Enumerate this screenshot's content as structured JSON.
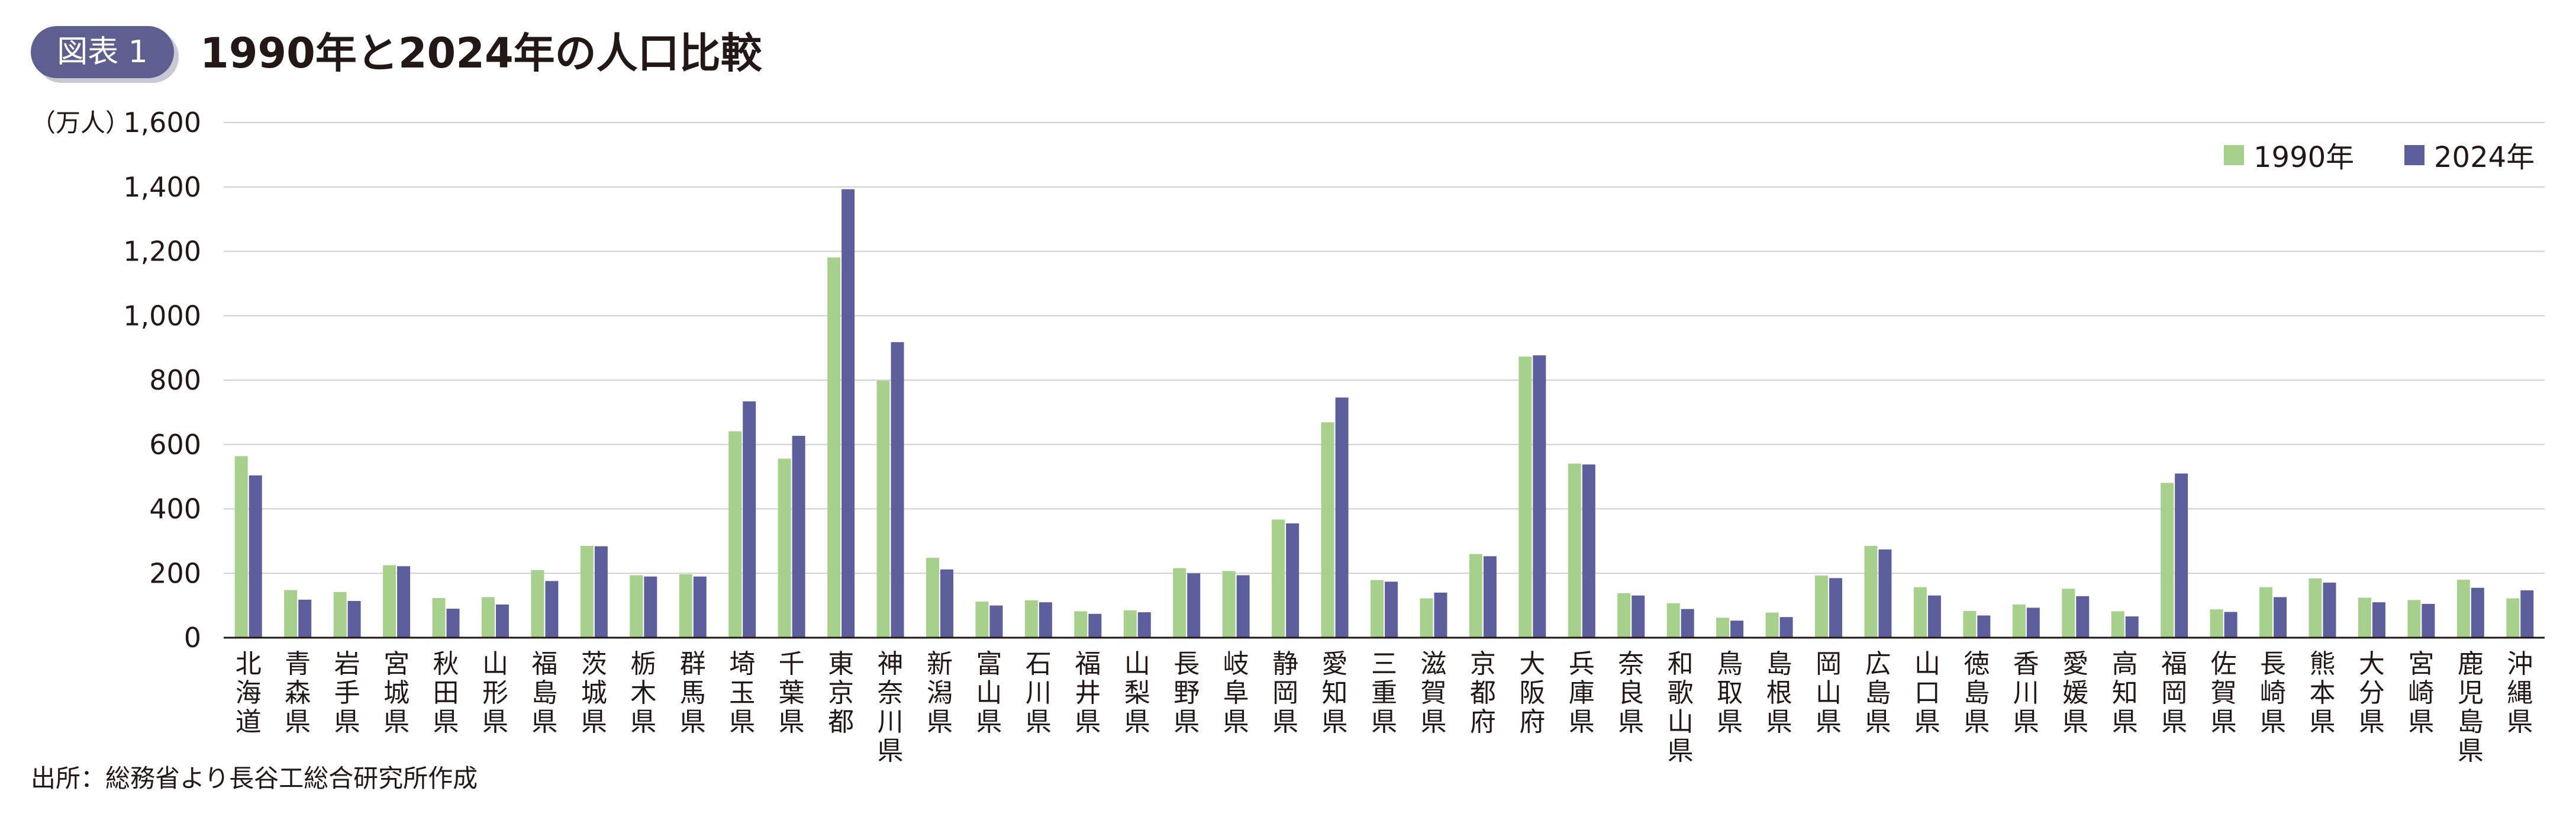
{
  "header": {
    "badge": "図表 1",
    "title": "1990年と2024年の人口比較"
  },
  "footer": {
    "source": "出所：総務省より長谷工総合研究所作成"
  },
  "colors": {
    "series_1990": "#a8d08d",
    "series_2024": "#5c5f9c",
    "badge_bg": "#5c5f8f",
    "grid": "#cfcfcf",
    "axis": "#231815"
  },
  "chart_data": {
    "type": "bar",
    "unit_label": "（万人）",
    "ylim": [
      0,
      1600
    ],
    "yticks": [
      0,
      200,
      400,
      600,
      800,
      1000,
      1200,
      1400,
      1600
    ],
    "ytick_labels": [
      "0",
      "200",
      "400",
      "600",
      "800",
      "1,000",
      "1,200",
      "1,400",
      "1,600"
    ],
    "grid": true,
    "legend_position": "top-right",
    "categories": [
      "北海道",
      "青森県",
      "岩手県",
      "宮城県",
      "秋田県",
      "山形県",
      "福島県",
      "茨城県",
      "栃木県",
      "群馬県",
      "埼玉県",
      "千葉県",
      "東京都",
      "神奈川県",
      "新潟県",
      "富山県",
      "石川県",
      "福井県",
      "山梨県",
      "長野県",
      "岐阜県",
      "静岡県",
      "愛知県",
      "三重県",
      "滋賀県",
      "京都府",
      "大阪府",
      "兵庫県",
      "奈良県",
      "和歌山県",
      "鳥取県",
      "島根県",
      "岡山県",
      "広島県",
      "山口県",
      "徳島県",
      "香川県",
      "愛媛県",
      "高知県",
      "福岡県",
      "佐賀県",
      "長崎県",
      "熊本県",
      "大分県",
      "宮崎県",
      "鹿児島県",
      "沖縄県"
    ],
    "series": [
      {
        "name": "1990年",
        "values": [
          564,
          148,
          142,
          225,
          123,
          126,
          210,
          285,
          194,
          197,
          641,
          556,
          1181,
          798,
          248,
          112,
          116,
          82,
          85,
          216,
          207,
          367,
          669,
          179,
          122,
          260,
          873,
          541,
          138,
          107,
          62,
          78,
          193,
          285,
          157,
          83,
          103,
          152,
          82,
          481,
          88,
          157,
          184,
          124,
          117,
          180,
          122
        ]
      },
      {
        "name": "2024年",
        "values": [
          504,
          118,
          114,
          222,
          90,
          103,
          176,
          284,
          190,
          190,
          734,
          627,
          1393,
          918,
          212,
          100,
          110,
          74,
          79,
          200,
          194,
          355,
          746,
          174,
          140,
          253,
          877,
          538,
          131,
          89,
          53,
          64,
          185,
          274,
          131,
          69,
          93,
          129,
          66,
          510,
          80,
          126,
          171,
          110,
          105,
          155,
          147
        ]
      }
    ]
  }
}
